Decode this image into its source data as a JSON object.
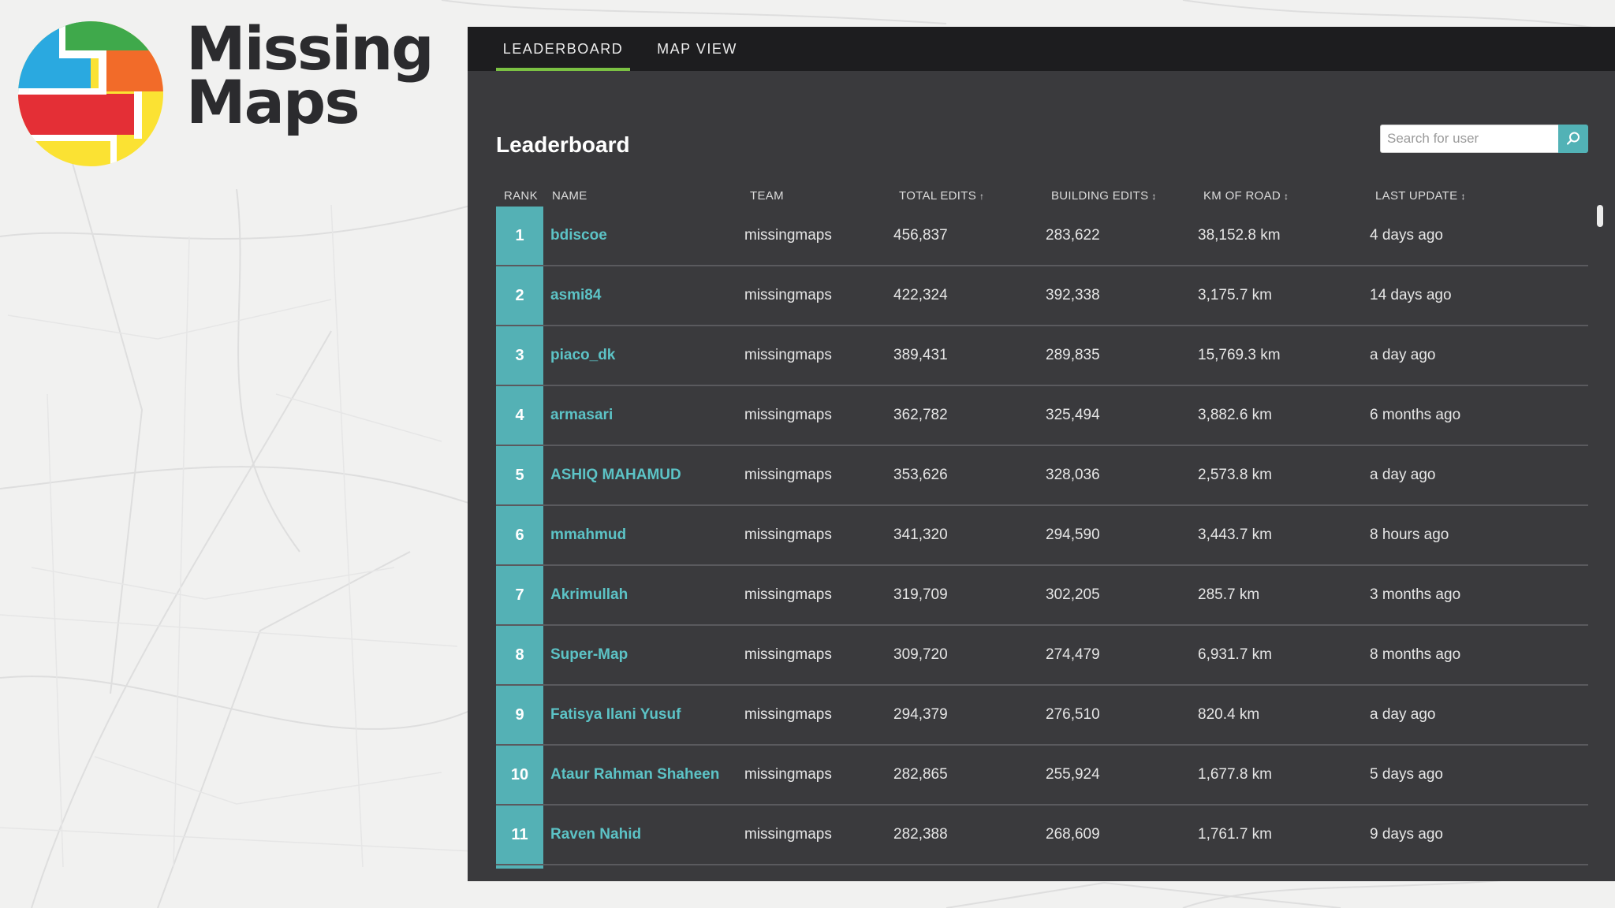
{
  "logo": {
    "line1": "Missing",
    "line2": "Maps",
    "colors": {
      "green": "#3fa94b",
      "blue": "#2aa9e0",
      "orange": "#f26b29",
      "red": "#e42f36",
      "yellow": "#fbe233"
    }
  },
  "nav": {
    "tabs": [
      {
        "label": "LEADERBOARD",
        "active": true
      },
      {
        "label": "MAP VIEW",
        "active": false
      }
    ],
    "accent": "#7bc143"
  },
  "leaderboard": {
    "title": "Leaderboard",
    "search_placeholder": "Search for user",
    "search_icon": "search-icon",
    "columns": {
      "rank": "RANK",
      "name": "NAME",
      "team": "TEAM",
      "total_edits": "TOTAL EDITS",
      "building_edits": "BUILDING EDITS",
      "km_of_road": "KM OF ROAD",
      "last_update": "LAST UPDATE"
    },
    "sort_arrows": {
      "total_edits": "↑",
      "building_edits": "↕",
      "km_of_road": "↕",
      "last_update": "↕"
    },
    "rows": [
      {
        "rank": "1",
        "name": "bdiscoe",
        "team": "missingmaps",
        "total": "456,837",
        "building": "283,622",
        "road": "38,152.8 km",
        "updated": "4 days ago"
      },
      {
        "rank": "2",
        "name": "asmi84",
        "team": "missingmaps",
        "total": "422,324",
        "building": "392,338",
        "road": "3,175.7 km",
        "updated": "14 days ago"
      },
      {
        "rank": "3",
        "name": "piaco_dk",
        "team": "missingmaps",
        "total": "389,431",
        "building": "289,835",
        "road": "15,769.3 km",
        "updated": "a day ago"
      },
      {
        "rank": "4",
        "name": "armasari",
        "team": "missingmaps",
        "total": "362,782",
        "building": "325,494",
        "road": "3,882.6 km",
        "updated": "6 months ago"
      },
      {
        "rank": "5",
        "name": "ASHIQ MAHAMUD",
        "team": "missingmaps",
        "total": "353,626",
        "building": "328,036",
        "road": "2,573.8 km",
        "updated": "a day ago"
      },
      {
        "rank": "6",
        "name": "mmahmud",
        "team": "missingmaps",
        "total": "341,320",
        "building": "294,590",
        "road": "3,443.7 km",
        "updated": "8 hours ago"
      },
      {
        "rank": "7",
        "name": "Akrimullah",
        "team": "missingmaps",
        "total": "319,709",
        "building": "302,205",
        "road": "285.7 km",
        "updated": "3 months ago"
      },
      {
        "rank": "8",
        "name": "Super-Map",
        "team": "missingmaps",
        "total": "309,720",
        "building": "274,479",
        "road": "6,931.7 km",
        "updated": "8 months ago"
      },
      {
        "rank": "9",
        "name": "Fatisya Ilani Yusuf",
        "team": "missingmaps",
        "total": "294,379",
        "building": "276,510",
        "road": "820.4 km",
        "updated": "a day ago"
      },
      {
        "rank": "10",
        "name": "Ataur Rahman Shaheen",
        "team": "missingmaps",
        "total": "282,865",
        "building": "255,924",
        "road": "1,677.8 km",
        "updated": "5 days ago"
      },
      {
        "rank": "11",
        "name": "Raven Nahid",
        "team": "missingmaps",
        "total": "282,388",
        "building": "268,609",
        "road": "1,761.7 km",
        "updated": "9 days ago"
      }
    ],
    "accent": "#54b1b5",
    "link_color": "#5cc3c6"
  }
}
